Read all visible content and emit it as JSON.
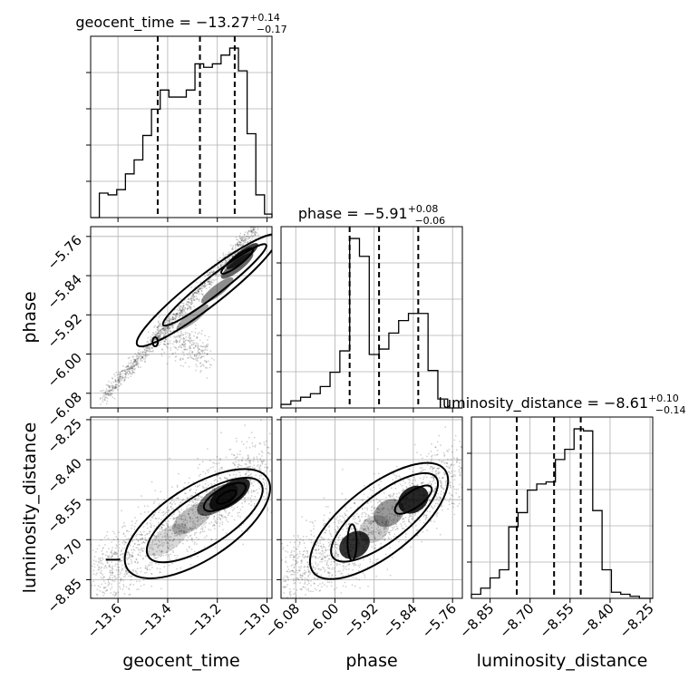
{
  "chart_data": {
    "type": "corner",
    "parameters": [
      "geocent_time",
      "phase",
      "luminosity_distance"
    ],
    "titles": [
      {
        "param": "geocent_time",
        "prefix": "geocent_time = ",
        "median": "−13.27",
        "upper": "+0.14",
        "lower": "−0.17"
      },
      {
        "param": "phase",
        "prefix": "phase = ",
        "median": "−5.91",
        "upper": "+0.08",
        "lower": "−0.06"
      },
      {
        "param": "luminosity_distance",
        "prefix": "luminosity_distance = ",
        "median": "−8.61",
        "upper": "+0.10",
        "lower": "−0.14"
      }
    ],
    "axis_labels": {
      "x": [
        "geocent_time",
        "phase",
        "luminosity_distance"
      ],
      "y": [
        "phase",
        "luminosity_distance"
      ]
    },
    "ranges": {
      "geocent_time": [
        -13.71,
        -12.98
      ],
      "phase": [
        -6.11,
        -5.74
      ],
      "luminosity_distance": [
        -8.92,
        -8.24
      ]
    },
    "ticks": {
      "geocent_time": [
        -13.6,
        -13.4,
        -13.2,
        -13.0
      ],
      "phase": [
        -6.08,
        -6.0,
        -5.92,
        -5.84,
        -5.76
      ],
      "luminosity_distance": [
        -8.85,
        -8.7,
        -8.55,
        -8.4,
        -8.25
      ]
    },
    "tick_labels": {
      "geocent_time": [
        "−13.6",
        "−13.4",
        "−13.2",
        "−13.0"
      ],
      "phase": [
        "−6.08",
        "−6.00",
        "−5.92",
        "−5.84",
        "−5.76"
      ],
      "luminosity_distance": [
        "−8.85",
        "−8.70",
        "−8.55",
        "−8.40",
        "−8.25"
      ]
    },
    "quantiles": {
      "geocent_time": [
        -13.44,
        -13.27,
        -13.13
      ],
      "phase": [
        -5.97,
        -5.91,
        -5.83
      ],
      "luminosity_distance": [
        -8.75,
        -8.61,
        -8.51
      ]
    },
    "histograms": {
      "geocent_time": {
        "edges": [
          -13.71,
          -13.675,
          -13.64,
          -13.605,
          -13.57,
          -13.535,
          -13.5,
          -13.465,
          -13.43,
          -13.395,
          -13.36,
          -13.325,
          -13.29,
          -13.255,
          -13.22,
          -13.185,
          -13.15,
          -13.115,
          -13.08,
          -13.045,
          -13.01,
          -12.98
        ],
        "counts": [
          0.0,
          0.14,
          0.13,
          0.16,
          0.25,
          0.33,
          0.47,
          0.62,
          0.73,
          0.69,
          0.69,
          0.73,
          0.88,
          0.86,
          0.88,
          0.93,
          0.97,
          0.84,
          0.48,
          0.13,
          0.02
        ]
      },
      "phase": {
        "edges": [
          -6.11,
          -6.09,
          -6.07,
          -6.05,
          -6.03,
          -6.01,
          -5.99,
          -5.97,
          -5.95,
          -5.93,
          -5.91,
          -5.89,
          -5.87,
          -5.85,
          -5.83,
          -5.81,
          -5.79,
          -5.77,
          -5.75,
          -5.74
        ],
        "counts": [
          0.02,
          0.04,
          0.06,
          0.08,
          0.12,
          0.2,
          0.32,
          0.95,
          0.85,
          0.3,
          0.33,
          0.42,
          0.49,
          0.53,
          0.53,
          0.21,
          0.05,
          0.0,
          0.0
        ]
      },
      "luminosity_distance": {
        "edges": [
          -8.92,
          -8.885,
          -8.85,
          -8.815,
          -8.78,
          -8.745,
          -8.71,
          -8.675,
          -8.64,
          -8.605,
          -8.57,
          -8.535,
          -8.5,
          -8.465,
          -8.43,
          -8.395,
          -8.36,
          -8.325,
          -8.29,
          -8.255,
          -8.24
        ],
        "counts": [
          0.02,
          0.05,
          0.1,
          0.14,
          0.35,
          0.42,
          0.53,
          0.56,
          0.57,
          0.68,
          0.73,
          0.83,
          0.82,
          0.43,
          0.14,
          0.03,
          0.02,
          0.01,
          0.0,
          0.0
        ]
      }
    },
    "grid": true,
    "contours": true,
    "scatter_points": true
  }
}
